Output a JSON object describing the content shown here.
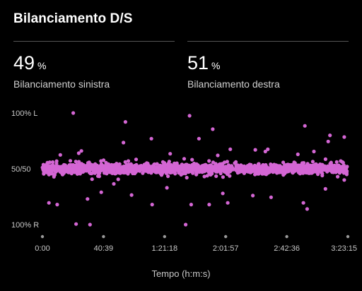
{
  "header": {
    "title": "Bilanciamento D/S"
  },
  "stats": [
    {
      "value": "49",
      "unit": "%",
      "label": "Bilanciamento sinistra"
    },
    {
      "value": "51",
      "unit": "%",
      "label": "Bilanciamento destra"
    }
  ],
  "chart_data": {
    "type": "scatter",
    "title": "",
    "xlabel": "Tempo (h:m:s)",
    "ylabel": "",
    "point_color": "#D466D4",
    "x_ticks": [
      "0:00",
      "40:39",
      "1:21:18",
      "2:01:57",
      "2:42:36",
      "3:23:15"
    ],
    "y_ticks": [
      "100% L",
      "50/50",
      "100% R"
    ],
    "x_range_seconds": [
      0,
      12195
    ],
    "y_range": [
      -100,
      100
    ],
    "grid": false,
    "outlier_points": [
      {
        "x": 1230,
        "y": 100
      },
      {
        "x": 3315,
        "y": 84
      },
      {
        "x": 5875,
        "y": 95
      },
      {
        "x": 6800,
        "y": 71
      },
      {
        "x": 6250,
        "y": 54
      },
      {
        "x": 10480,
        "y": 77
      },
      {
        "x": 12050,
        "y": 57
      },
      {
        "x": 11410,
        "y": 49
      },
      {
        "x": 10840,
        "y": 31
      },
      {
        "x": 10200,
        "y": 26
      },
      {
        "x": 9000,
        "y": 35
      },
      {
        "x": 7500,
        "y": 35
      },
      {
        "x": 8500,
        "y": 34
      },
      {
        "x": 4350,
        "y": 54
      },
      {
        "x": 1555,
        "y": 32
      },
      {
        "x": 1450,
        "y": 28
      },
      {
        "x": 715,
        "y": 25
      },
      {
        "x": 3235,
        "y": 47
      },
      {
        "x": 11480,
        "y": 60
      },
      {
        "x": 5100,
        "y": 27
      },
      {
        "x": 7000,
        "y": 24
      },
      {
        "x": 8900,
        "y": 31
      },
      {
        "x": 5660,
        "y": 18
      },
      {
        "x": 260,
        "y": -61
      },
      {
        "x": 590,
        "y": -64
      },
      {
        "x": 1345,
        "y": -99
      },
      {
        "x": 1900,
        "y": -100
      },
      {
        "x": 1800,
        "y": -54
      },
      {
        "x": 4380,
        "y": -64
      },
      {
        "x": 5720,
        "y": -100
      },
      {
        "x": 5940,
        "y": -64
      },
      {
        "x": 6660,
        "y": -64
      },
      {
        "x": 7400,
        "y": -61
      },
      {
        "x": 8400,
        "y": -48
      },
      {
        "x": 10420,
        "y": -61
      },
      {
        "x": 10570,
        "y": -72
      },
      {
        "x": 11300,
        "y": -36
      },
      {
        "x": 12050,
        "y": -20
      },
      {
        "x": 2850,
        "y": -27
      },
      {
        "x": 4970,
        "y": -34
      },
      {
        "x": 7200,
        "y": -44
      },
      {
        "x": 3560,
        "y": -47
      },
      {
        "x": 9130,
        "y": -51
      },
      {
        "x": 2350,
        "y": -42
      }
    ]
  }
}
